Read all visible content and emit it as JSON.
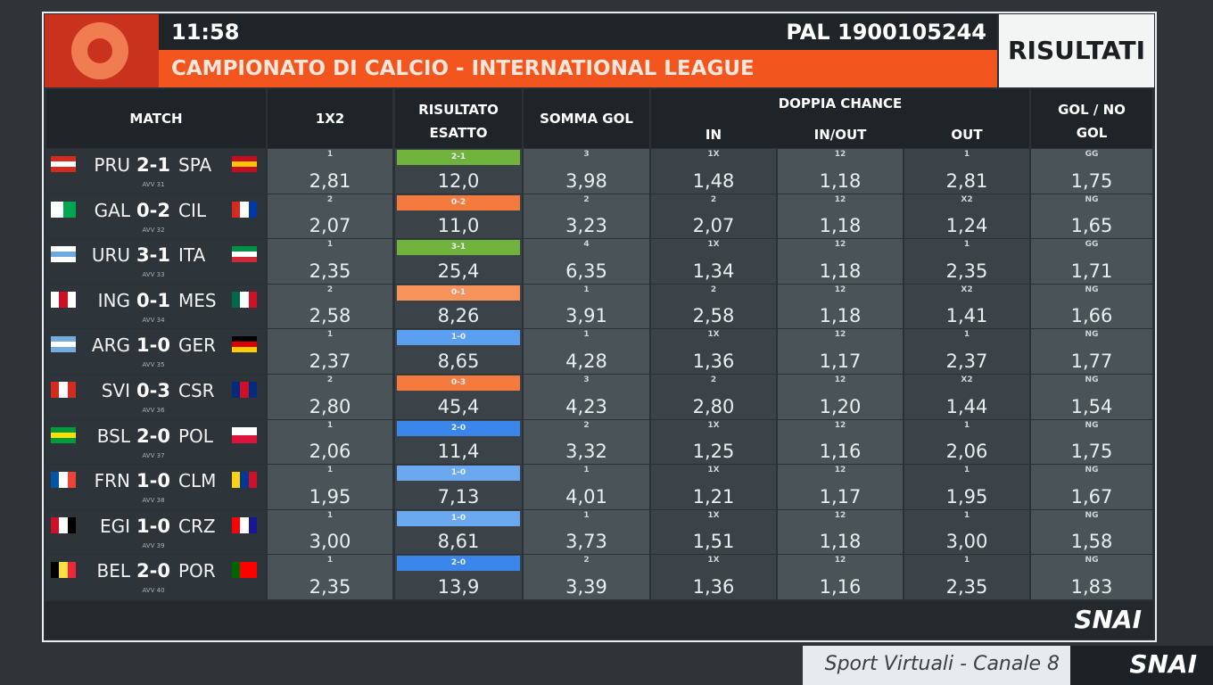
{
  "header": {
    "time": "11:58",
    "code": "PAL 1900105244",
    "league": "CAMPIONATO DI CALCIO - INTERNATIONAL LEAGUE",
    "badge": "RISULTATI"
  },
  "columns": {
    "match": "MATCH",
    "one_x_two": "1X2",
    "exact": "RISULTATO ESATTO",
    "goals": "SOMMA GOL",
    "double": "DOPPIA CHANCE",
    "in": "IN",
    "in_out": "IN/OUT",
    "out": "OUT",
    "gg": "GOL / NO GOL"
  },
  "rows": [
    {
      "home": "PRU",
      "score": "2-1",
      "away": "SPA",
      "avv": "AVV 31",
      "score_color": "#6fb33c",
      "markets": [
        {
          "label": "1",
          "odd": "2,81"
        },
        {
          "label": "2-1",
          "odd": "12,0"
        },
        {
          "label": "3",
          "odd": "3,98"
        },
        {
          "label": "1X",
          "odd": "1,48"
        },
        {
          "label": "12",
          "odd": "1,18"
        },
        {
          "label": "1",
          "odd": "2,81"
        },
        {
          "label": "GG",
          "odd": "1,75"
        }
      ]
    },
    {
      "home": "GAL",
      "score": "0-2",
      "away": "CIL",
      "avv": "AVV 32",
      "score_color": "#f47a3e",
      "markets": [
        {
          "label": "2",
          "odd": "2,07"
        },
        {
          "label": "0-2",
          "odd": "11,0"
        },
        {
          "label": "2",
          "odd": "3,23"
        },
        {
          "label": "2",
          "odd": "2,07"
        },
        {
          "label": "12",
          "odd": "1,18"
        },
        {
          "label": "X2",
          "odd": "1,24"
        },
        {
          "label": "NG",
          "odd": "1,65"
        }
      ]
    },
    {
      "home": "URU",
      "score": "3-1",
      "away": "ITA",
      "avv": "AVV 33",
      "score_color": "#6fb33c",
      "markets": [
        {
          "label": "1",
          "odd": "2,35"
        },
        {
          "label": "3-1",
          "odd": "25,4"
        },
        {
          "label": "4",
          "odd": "6,35"
        },
        {
          "label": "1X",
          "odd": "1,34"
        },
        {
          "label": "12",
          "odd": "1,18"
        },
        {
          "label": "1",
          "odd": "2,35"
        },
        {
          "label": "GG",
          "odd": "1,71"
        }
      ]
    },
    {
      "home": "ING",
      "score": "0-1",
      "away": "MES",
      "avv": "AVV 34",
      "score_color": "#f6925a",
      "markets": [
        {
          "label": "2",
          "odd": "2,58"
        },
        {
          "label": "0-1",
          "odd": "8,26"
        },
        {
          "label": "1",
          "odd": "3,91"
        },
        {
          "label": "2",
          "odd": "2,58"
        },
        {
          "label": "12",
          "odd": "1,18"
        },
        {
          "label": "X2",
          "odd": "1,41"
        },
        {
          "label": "NG",
          "odd": "1,66"
        }
      ]
    },
    {
      "home": "ARG",
      "score": "1-0",
      "away": "GER",
      "avv": "AVV 35",
      "score_color": "#5b9ff0",
      "markets": [
        {
          "label": "1",
          "odd": "2,37"
        },
        {
          "label": "1-0",
          "odd": "8,65"
        },
        {
          "label": "1",
          "odd": "4,28"
        },
        {
          "label": "1X",
          "odd": "1,36"
        },
        {
          "label": "12",
          "odd": "1,17"
        },
        {
          "label": "1",
          "odd": "2,37"
        },
        {
          "label": "NG",
          "odd": "1,77"
        }
      ]
    },
    {
      "home": "SVI",
      "score": "0-3",
      "away": "CSR",
      "avv": "AVV 36",
      "score_color": "#f47a3e",
      "markets": [
        {
          "label": "2",
          "odd": "2,80"
        },
        {
          "label": "0-3",
          "odd": "45,4"
        },
        {
          "label": "3",
          "odd": "4,23"
        },
        {
          "label": "2",
          "odd": "2,80"
        },
        {
          "label": "12",
          "odd": "1,20"
        },
        {
          "label": "X2",
          "odd": "1,44"
        },
        {
          "label": "NG",
          "odd": "1,54"
        }
      ]
    },
    {
      "home": "BSL",
      "score": "2-0",
      "away": "POL",
      "avv": "AVV 37",
      "score_color": "#3a86ea",
      "markets": [
        {
          "label": "1",
          "odd": "2,06"
        },
        {
          "label": "2-0",
          "odd": "11,4"
        },
        {
          "label": "2",
          "odd": "3,32"
        },
        {
          "label": "1X",
          "odd": "1,25"
        },
        {
          "label": "12",
          "odd": "1,16"
        },
        {
          "label": "1",
          "odd": "2,06"
        },
        {
          "label": "NG",
          "odd": "1,75"
        }
      ]
    },
    {
      "home": "FRN",
      "score": "1-0",
      "away": "CLM",
      "avv": "AVV 38",
      "score_color": "#6aa8f0",
      "markets": [
        {
          "label": "1",
          "odd": "1,95"
        },
        {
          "label": "1-0",
          "odd": "7,13"
        },
        {
          "label": "1",
          "odd": "4,01"
        },
        {
          "label": "1X",
          "odd": "1,21"
        },
        {
          "label": "12",
          "odd": "1,17"
        },
        {
          "label": "1",
          "odd": "1,95"
        },
        {
          "label": "NG",
          "odd": "1,67"
        }
      ]
    },
    {
      "home": "EGI",
      "score": "1-0",
      "away": "CRZ",
      "avv": "AVV 39",
      "score_color": "#6aa8f0",
      "markets": [
        {
          "label": "1",
          "odd": "3,00"
        },
        {
          "label": "1-0",
          "odd": "8,61"
        },
        {
          "label": "1",
          "odd": "3,73"
        },
        {
          "label": "1X",
          "odd": "1,51"
        },
        {
          "label": "12",
          "odd": "1,18"
        },
        {
          "label": "1",
          "odd": "3,00"
        },
        {
          "label": "NG",
          "odd": "1,58"
        }
      ]
    },
    {
      "home": "BEL",
      "score": "2-0",
      "away": "POR",
      "avv": "AVV 40",
      "score_color": "#3a86ea",
      "markets": [
        {
          "label": "1",
          "odd": "2,35"
        },
        {
          "label": "2-0",
          "odd": "13,9"
        },
        {
          "label": "2",
          "odd": "3,39"
        },
        {
          "label": "1X",
          "odd": "1,36"
        },
        {
          "label": "12",
          "odd": "1,16"
        },
        {
          "label": "1",
          "odd": "2,35"
        },
        {
          "label": "NG",
          "odd": "1,83"
        }
      ]
    }
  ],
  "footer": {
    "logo": "SNAI",
    "channel": "Sport Virtuali - Canale 8",
    "channel_logo": "SNAI"
  }
}
